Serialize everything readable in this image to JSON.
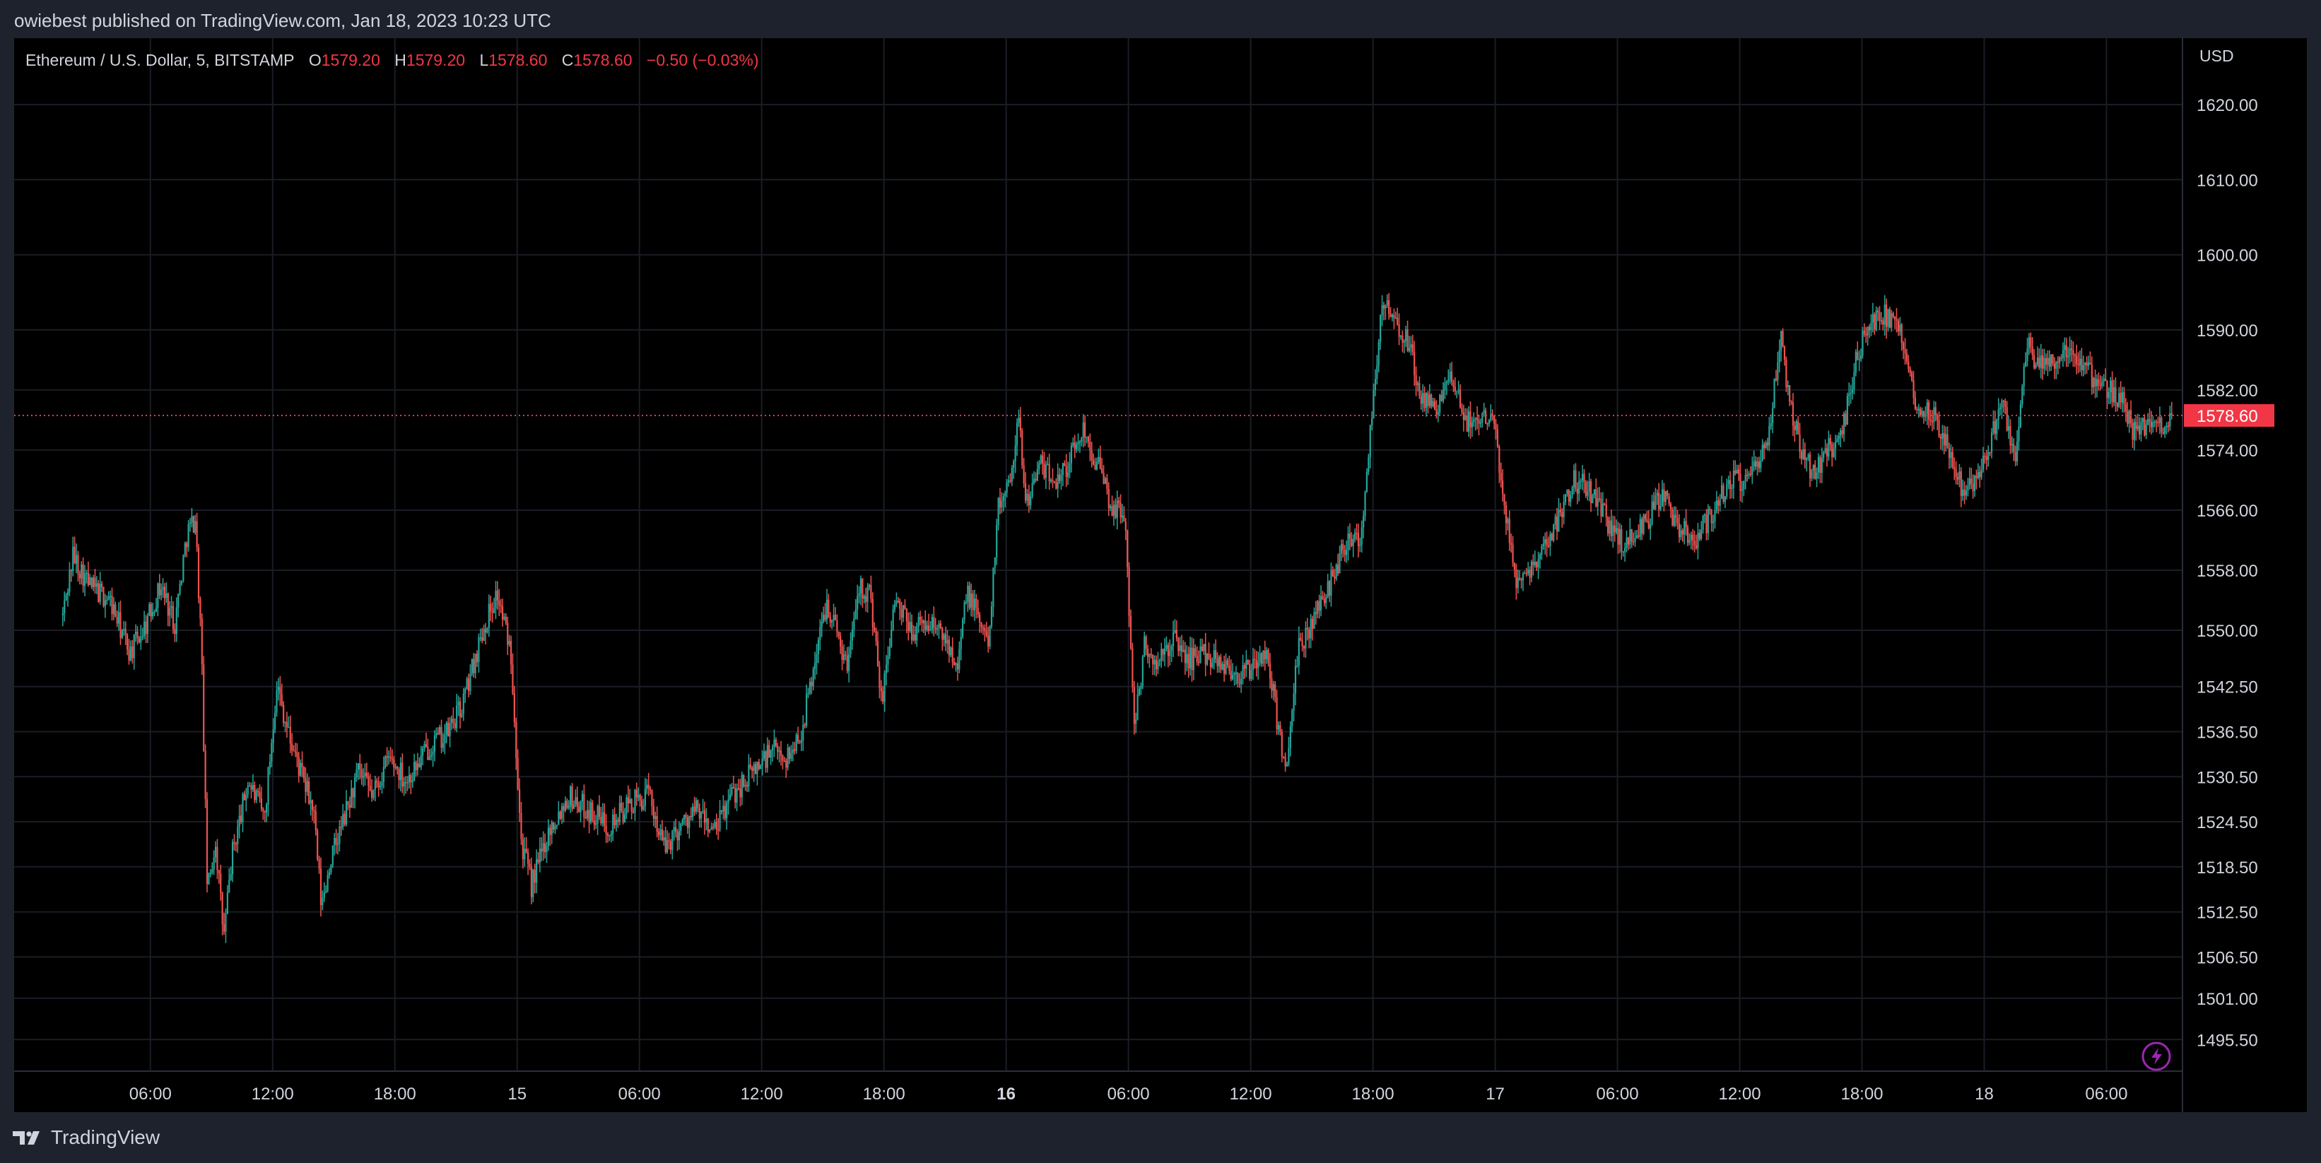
{
  "header": {
    "published_text": "owiebest published on TradingView.com, Jan 18, 2023 10:23 UTC"
  },
  "legend": {
    "symbol": "Ethereum / U.S. Dollar, 5, BITSTAMP",
    "o_label": "O",
    "o_value": "1579.20",
    "h_label": "H",
    "h_value": "1579.20",
    "l_label": "L",
    "l_value": "1578.60",
    "c_label": "C",
    "c_value": "1578.60",
    "change": "−0.50 (−0.03%)"
  },
  "axis": {
    "currency": "USD"
  },
  "footer": {
    "brand": "TradingView"
  },
  "colors": {
    "up": "#26a69a",
    "down": "#ef5350",
    "background": "#000000",
    "frame": "#1e222d",
    "grid": "#1a1d24",
    "last_price": "#f23645",
    "accent": "#9c27b0"
  },
  "icons": {
    "logo": "tradingview-logo-icon",
    "bolt": "lightning-bolt-icon"
  },
  "chart_data": {
    "type": "candlestick",
    "interval_minutes": 5,
    "last_price": 1578.6,
    "last_price_label": "1578.60",
    "y_ticks": [
      {
        "value": 1620.0,
        "label": "1620.00"
      },
      {
        "value": 1610.0,
        "label": "1610.00"
      },
      {
        "value": 1600.0,
        "label": "1600.00"
      },
      {
        "value": 1590.0,
        "label": "1590.00"
      },
      {
        "value": 1582.0,
        "label": "1582.00"
      },
      {
        "value": 1574.0,
        "label": "1574.00"
      },
      {
        "value": 1566.0,
        "label": "1566.00"
      },
      {
        "value": 1558.0,
        "label": "1558.00"
      },
      {
        "value": 1550.0,
        "label": "1550.00"
      },
      {
        "value": 1542.5,
        "label": "1542.50"
      },
      {
        "value": 1536.5,
        "label": "1536.50"
      },
      {
        "value": 1530.5,
        "label": "1530.50"
      },
      {
        "value": 1524.5,
        "label": "1524.50"
      },
      {
        "value": 1518.5,
        "label": "1518.50"
      },
      {
        "value": 1512.5,
        "label": "1512.50"
      },
      {
        "value": 1506.5,
        "label": "1506.50"
      },
      {
        "value": 1501.0,
        "label": "1501.00"
      },
      {
        "value": 1495.5,
        "label": "1495.50"
      }
    ],
    "x_ticks": [
      {
        "hours": 6,
        "label": "06:00",
        "bold": false
      },
      {
        "hours": 12,
        "label": "12:00",
        "bold": false
      },
      {
        "hours": 18,
        "label": "18:00",
        "bold": false
      },
      {
        "hours": 24,
        "label": "15",
        "bold": false
      },
      {
        "hours": 30,
        "label": "06:00",
        "bold": false
      },
      {
        "hours": 36,
        "label": "12:00",
        "bold": false
      },
      {
        "hours": 42,
        "label": "18:00",
        "bold": false
      },
      {
        "hours": 48,
        "label": "16",
        "bold": true
      },
      {
        "hours": 54,
        "label": "06:00",
        "bold": false
      },
      {
        "hours": 60,
        "label": "12:00",
        "bold": false
      },
      {
        "hours": 66,
        "label": "18:00",
        "bold": false
      },
      {
        "hours": 72,
        "label": "17",
        "bold": false
      },
      {
        "hours": 78,
        "label": "06:00",
        "bold": false
      },
      {
        "hours": 84,
        "label": "12:00",
        "bold": false
      },
      {
        "hours": 90,
        "label": "18:00",
        "bold": false
      },
      {
        "hours": 96,
        "label": "18",
        "bold": false
      },
      {
        "hours": 102,
        "label": "06:00",
        "bold": false
      }
    ],
    "price_path": [
      [
        1.7,
        1552
      ],
      [
        2.2,
        1560
      ],
      [
        3.0,
        1556
      ],
      [
        4.0,
        1554
      ],
      [
        5.0,
        1547
      ],
      [
        5.8,
        1551
      ],
      [
        6.5,
        1556
      ],
      [
        7.2,
        1551
      ],
      [
        7.8,
        1563
      ],
      [
        8.2,
        1565
      ],
      [
        8.5,
        1548
      ],
      [
        8.8,
        1515
      ],
      [
        9.2,
        1522
      ],
      [
        9.6,
        1509
      ],
      [
        10.0,
        1520
      ],
      [
        10.8,
        1530
      ],
      [
        11.6,
        1525
      ],
      [
        12.2,
        1543
      ],
      [
        12.8,
        1536
      ],
      [
        13.5,
        1530
      ],
      [
        14.0,
        1526
      ],
      [
        14.4,
        1513
      ],
      [
        14.8,
        1519
      ],
      [
        15.4,
        1524
      ],
      [
        16.2,
        1531
      ],
      [
        16.9,
        1528
      ],
      [
        17.7,
        1533
      ],
      [
        18.6,
        1530
      ],
      [
        19.8,
        1535
      ],
      [
        20.5,
        1536
      ],
      [
        21.3,
        1540
      ],
      [
        22.3,
        1550
      ],
      [
        23.0,
        1555
      ],
      [
        23.7,
        1547
      ],
      [
        24.2,
        1522
      ],
      [
        24.7,
        1516
      ],
      [
        25.5,
        1523
      ],
      [
        26.5,
        1528
      ],
      [
        27.5,
        1526
      ],
      [
        28.5,
        1524
      ],
      [
        29.6,
        1527
      ],
      [
        30.5,
        1528
      ],
      [
        31.2,
        1521
      ],
      [
        32.0,
        1524
      ],
      [
        32.8,
        1526
      ],
      [
        33.7,
        1523
      ],
      [
        34.5,
        1528
      ],
      [
        35.5,
        1531
      ],
      [
        36.5,
        1534
      ],
      [
        37.3,
        1533
      ],
      [
        38.0,
        1537
      ],
      [
        38.6,
        1546
      ],
      [
        39.2,
        1554
      ],
      [
        39.8,
        1549
      ],
      [
        40.2,
        1545
      ],
      [
        40.7,
        1556
      ],
      [
        41.3,
        1555
      ],
      [
        41.9,
        1540
      ],
      [
        42.5,
        1554
      ],
      [
        43.3,
        1550
      ],
      [
        44.3,
        1551
      ],
      [
        45.0,
        1549
      ],
      [
        45.6,
        1546
      ],
      [
        46.1,
        1555
      ],
      [
        46.6,
        1552
      ],
      [
        47.1,
        1548
      ],
      [
        47.6,
        1566
      ],
      [
        48.2,
        1571
      ],
      [
        48.6,
        1578
      ],
      [
        49.0,
        1567
      ],
      [
        49.6,
        1572
      ],
      [
        50.3,
        1570
      ],
      [
        51.0,
        1572
      ],
      [
        51.8,
        1577
      ],
      [
        52.5,
        1572
      ],
      [
        53.2,
        1566
      ],
      [
        53.8,
        1566
      ],
      [
        54.3,
        1537
      ],
      [
        54.8,
        1548
      ],
      [
        55.4,
        1545
      ],
      [
        56.2,
        1549
      ],
      [
        56.9,
        1546
      ],
      [
        57.7,
        1547
      ],
      [
        58.5,
        1546
      ],
      [
        59.3,
        1544
      ],
      [
        60.1,
        1545
      ],
      [
        60.8,
        1547
      ],
      [
        61.3,
        1538
      ],
      [
        61.8,
        1531
      ],
      [
        62.3,
        1547
      ],
      [
        63.0,
        1551
      ],
      [
        64.0,
        1557
      ],
      [
        64.8,
        1563
      ],
      [
        65.4,
        1562
      ],
      [
        66.0,
        1581
      ],
      [
        66.5,
        1594
      ],
      [
        67.2,
        1590
      ],
      [
        67.8,
        1588
      ],
      [
        68.4,
        1580
      ],
      [
        69.1,
        1580
      ],
      [
        69.8,
        1583
      ],
      [
        70.6,
        1578
      ],
      [
        71.3,
        1578
      ],
      [
        71.9,
        1580
      ],
      [
        72.4,
        1567
      ],
      [
        73.0,
        1557
      ],
      [
        73.6,
        1558
      ],
      [
        74.4,
        1561
      ],
      [
        75.1,
        1565
      ],
      [
        75.8,
        1570
      ],
      [
        76.6,
        1569
      ],
      [
        77.4,
        1565
      ],
      [
        78.1,
        1562
      ],
      [
        78.8,
        1562
      ],
      [
        79.5,
        1565
      ],
      [
        80.2,
        1568
      ],
      [
        81.0,
        1564
      ],
      [
        81.8,
        1562
      ],
      [
        82.7,
        1566
      ],
      [
        83.6,
        1570
      ],
      [
        84.5,
        1570
      ],
      [
        85.4,
        1575
      ],
      [
        86.0,
        1589
      ],
      [
        86.5,
        1580
      ],
      [
        87.1,
        1573
      ],
      [
        87.7,
        1571
      ],
      [
        88.3,
        1574
      ],
      [
        89.0,
        1576
      ],
      [
        89.7,
        1586
      ],
      [
        90.4,
        1591
      ],
      [
        91.1,
        1592
      ],
      [
        91.9,
        1589
      ],
      [
        92.7,
        1580
      ],
      [
        93.5,
        1579
      ],
      [
        94.3,
        1574
      ],
      [
        95.0,
        1568
      ],
      [
        95.7,
        1571
      ],
      [
        96.3,
        1575
      ],
      [
        96.9,
        1580
      ],
      [
        97.5,
        1573
      ],
      [
        98.1,
        1588
      ],
      [
        98.8,
        1585
      ],
      [
        99.6,
        1586
      ],
      [
        100.4,
        1587
      ],
      [
        101.2,
        1584
      ],
      [
        102.0,
        1582
      ],
      [
        102.7,
        1581
      ],
      [
        103.4,
        1576
      ],
      [
        104.0,
        1578
      ],
      [
        104.6,
        1577
      ],
      [
        105.2,
        1578.6
      ]
    ]
  }
}
